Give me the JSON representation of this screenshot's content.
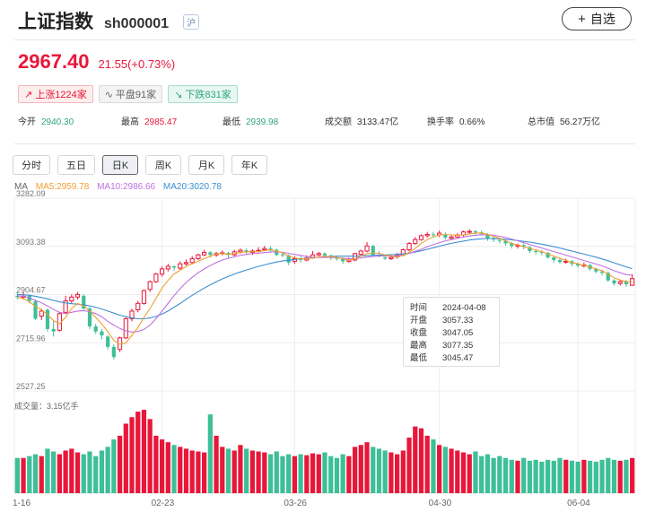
{
  "header": {
    "title": "上证指数",
    "code": "sh000001",
    "tag": "沪",
    "add_label": "自选",
    "add_icon": "plus-icon"
  },
  "quote": {
    "price": "2967.40",
    "change": "21.55(+0.73%)"
  },
  "market_breadth": {
    "up": "上涨1224家",
    "flat": "平盘91家",
    "down": "下跌831家"
  },
  "stats": [
    {
      "label": "今开",
      "value": "2940.30",
      "color": "green"
    },
    {
      "label": "最高",
      "value": "2985.47",
      "color": "red"
    },
    {
      "label": "最低",
      "value": "2939.98",
      "color": "green"
    },
    {
      "label": "成交额",
      "value": "3133.47亿",
      "color": "normal"
    },
    {
      "label": "换手率",
      "value": "0.66%",
      "color": "normal"
    },
    {
      "label": "总市值",
      "value": "56.27万亿",
      "color": "normal"
    }
  ],
  "tabs": [
    {
      "label": "分时",
      "active": false
    },
    {
      "label": "五日",
      "active": false
    },
    {
      "label": "日K",
      "active": true
    },
    {
      "label": "周K",
      "active": false
    },
    {
      "label": "月K",
      "active": false
    },
    {
      "label": "年K",
      "active": false
    }
  ],
  "ma_legend": {
    "label": "MA",
    "ma5": "MA5:2959.78",
    "ma10": "MA10:2986.66",
    "ma20": "MA20:3020.78"
  },
  "tooltip": {
    "rows": [
      {
        "k": "时间",
        "v": "2024-04-08"
      },
      {
        "k": "开盘",
        "v": "3057.33"
      },
      {
        "k": "收盘",
        "v": "3047.05"
      },
      {
        "k": "最高",
        "v": "3077.35"
      },
      {
        "k": "最低",
        "v": "3045.47"
      }
    ]
  },
  "volume_label": "成交量：3.15亿手",
  "colors": {
    "up": "#e8173a",
    "down": "#3dbf97",
    "ma5": "#f0a030",
    "ma10": "#c070e0",
    "ma20": "#3b8fd0"
  },
  "chart_data": {
    "type": "candlestick",
    "y_ticks": [
      "3282.09",
      "3093.38",
      "2904.67",
      "2715.96",
      "2527.25"
    ],
    "ylim": [
      2527.25,
      3282.09
    ],
    "x_ticks": [
      "1-16",
      "02-23",
      "03-26",
      "04-30",
      "06-04"
    ],
    "grid": true,
    "candles": [
      [
        2900,
        2895,
        2912,
        2885
      ],
      [
        2895,
        2898,
        2915,
        2885
      ],
      [
        2900,
        2880,
        2905,
        2870
      ],
      [
        2878,
        2810,
        2885,
        2805
      ],
      [
        2820,
        2840,
        2850,
        2805
      ],
      [
        2845,
        2770,
        2850,
        2760
      ],
      [
        2770,
        2760,
        2800,
        2740
      ],
      [
        2765,
        2830,
        2835,
        2760
      ],
      [
        2835,
        2880,
        2900,
        2830
      ],
      [
        2880,
        2895,
        2905,
        2870
      ],
      [
        2895,
        2905,
        2915,
        2885
      ],
      [
        2900,
        2850,
        2905,
        2845
      ],
      [
        2850,
        2780,
        2855,
        2770
      ],
      [
        2780,
        2760,
        2790,
        2750
      ],
      [
        2760,
        2745,
        2770,
        2730
      ],
      [
        2740,
        2700,
        2745,
        2690
      ],
      [
        2700,
        2660,
        2710,
        2650
      ],
      [
        2690,
        2735,
        2740,
        2680
      ],
      [
        2735,
        2810,
        2815,
        2730
      ],
      [
        2810,
        2840,
        2850,
        2800
      ],
      [
        2845,
        2870,
        2880,
        2835
      ],
      [
        2870,
        2920,
        2925,
        2865
      ],
      [
        2925,
        2955,
        2960,
        2915
      ],
      [
        2955,
        2985,
        2990,
        2950
      ],
      [
        2985,
        3005,
        3015,
        2975
      ],
      [
        3005,
        3015,
        3025,
        2995
      ],
      [
        3015,
        3010,
        3020,
        2998
      ],
      [
        3008,
        3025,
        3035,
        3000
      ],
      [
        3025,
        3030,
        3042,
        3018
      ],
      [
        3030,
        3045,
        3055,
        3025
      ],
      [
        3045,
        3060,
        3065,
        3040
      ],
      [
        3060,
        3070,
        3080,
        3055
      ],
      [
        3070,
        3060,
        3075,
        3050
      ],
      [
        3060,
        3065,
        3072,
        3052
      ],
      [
        3065,
        3068,
        3078,
        3058
      ],
      [
        3068,
        3060,
        3072,
        3048
      ],
      [
        3060,
        3072,
        3080,
        3055
      ],
      [
        3072,
        3078,
        3085,
        3065
      ],
      [
        3078,
        3070,
        3085,
        3062
      ],
      [
        3070,
        3075,
        3082,
        3060
      ],
      [
        3075,
        3078,
        3090,
        3070
      ],
      [
        3080,
        3085,
        3095,
        3075
      ],
      [
        3085,
        3080,
        3095,
        3070
      ],
      [
        3080,
        3060,
        3085,
        3055
      ],
      [
        3062,
        3058,
        3068,
        3050
      ],
      [
        3058,
        3030,
        3062,
        3020
      ],
      [
        3035,
        3045,
        3055,
        3025
      ],
      [
        3045,
        3040,
        3055,
        3030
      ],
      [
        3040,
        3048,
        3058,
        3035
      ],
      [
        3048,
        3060,
        3075,
        3045
      ],
      [
        3060,
        3065,
        3072,
        3055
      ],
      [
        3065,
        3058,
        3070,
        3050
      ],
      [
        3058,
        3050,
        3062,
        3040
      ],
      [
        3050,
        3045,
        3058,
        3038
      ],
      [
        3045,
        3035,
        3050,
        3025
      ],
      [
        3035,
        3040,
        3050,
        3030
      ],
      [
        3040,
        3065,
        3068,
        3035
      ],
      [
        3062,
        3075,
        3080,
        3055
      ],
      [
        3075,
        3095,
        3110,
        3070
      ],
      [
        3095,
        3060,
        3100,
        3055
      ],
      [
        3060,
        3055,
        3075,
        3050
      ],
      [
        3050,
        3045,
        3060,
        3040
      ],
      [
        3045,
        3050,
        3060,
        3040
      ],
      [
        3052,
        3060,
        3068,
        3045
      ],
      [
        3060,
        3080,
        3085,
        3055
      ],
      [
        3080,
        3105,
        3110,
        3075
      ],
      [
        3105,
        3120,
        3130,
        3100
      ],
      [
        3120,
        3135,
        3140,
        3115
      ],
      [
        3135,
        3140,
        3150,
        3128
      ],
      [
        3140,
        3138,
        3150,
        3130
      ],
      [
        3138,
        3145,
        3155,
        3130
      ],
      [
        3140,
        3128,
        3148,
        3120
      ],
      [
        3125,
        3130,
        3140,
        3118
      ],
      [
        3130,
        3138,
        3145,
        3125
      ],
      [
        3138,
        3150,
        3155,
        3132
      ],
      [
        3150,
        3152,
        3160,
        3142
      ],
      [
        3152,
        3148,
        3158,
        3140
      ],
      [
        3148,
        3142,
        3155,
        3135
      ],
      [
        3140,
        3125,
        3145,
        3115
      ],
      [
        3125,
        3120,
        3132,
        3110
      ],
      [
        3118,
        3115,
        3125,
        3105
      ],
      [
        3115,
        3105,
        3120,
        3095
      ],
      [
        3105,
        3095,
        3110,
        3085
      ],
      [
        3095,
        3098,
        3105,
        3085
      ],
      [
        3098,
        3092,
        3105,
        3082
      ],
      [
        3090,
        3075,
        3095,
        3068
      ],
      [
        3075,
        3072,
        3082,
        3062
      ],
      [
        3072,
        3068,
        3078,
        3058
      ],
      [
        3068,
        3050,
        3072,
        3045
      ],
      [
        3050,
        3040,
        3055,
        3030
      ],
      [
        3040,
        3032,
        3048,
        3025
      ],
      [
        3032,
        3035,
        3045,
        3025
      ],
      [
        3035,
        3025,
        3040,
        3015
      ],
      [
        3025,
        3018,
        3030,
        3010
      ],
      [
        3018,
        3020,
        3030,
        3010
      ],
      [
        3020,
        3005,
        3025,
        2998
      ],
      [
        3005,
        2995,
        3010,
        2988
      ],
      [
        2995,
        2990,
        3002,
        2980
      ],
      [
        2990,
        2960,
        2995,
        2955
      ],
      [
        2960,
        2948,
        2965,
        2940
      ],
      [
        2948,
        2955,
        2962,
        2940
      ],
      [
        2955,
        2945,
        2962,
        2935
      ],
      [
        2941,
        2967,
        2985,
        2940
      ]
    ],
    "ma5": [
      2893,
      2890,
      2876,
      2858,
      2846,
      2826,
      2803,
      2790,
      2816,
      2850,
      2870,
      2860,
      2840,
      2815,
      2790,
      2760,
      2725,
      2710,
      2715,
      2745,
      2775,
      2815,
      2850,
      2890,
      2930,
      2960,
      2985,
      3000,
      3015,
      3025,
      3035,
      3045,
      3055,
      3063,
      3065,
      3062,
      3065,
      3070,
      3072,
      3073,
      3073,
      3077,
      3080,
      3075,
      3068,
      3055,
      3048,
      3044,
      3045,
      3048,
      3052,
      3055,
      3053,
      3050,
      3045,
      3040,
      3045,
      3055,
      3065,
      3068,
      3066,
      3060,
      3055,
      3052,
      3058,
      3070,
      3085,
      3105,
      3120,
      3130,
      3138,
      3140,
      3138,
      3137,
      3138,
      3142,
      3145,
      3146,
      3140,
      3132,
      3125,
      3115,
      3105,
      3098,
      3092,
      3085,
      3080,
      3072,
      3064,
      3055,
      3046,
      3038,
      3030,
      3025,
      3018,
      3012,
      3005,
      2998,
      2985,
      2970,
      2962,
      2955,
      2955
    ],
    "ma10": [
      2900,
      2898,
      2892,
      2882,
      2872,
      2860,
      2846,
      2835,
      2830,
      2835,
      2840,
      2842,
      2838,
      2830,
      2818,
      2800,
      2785,
      2772,
      2762,
      2758,
      2760,
      2768,
      2785,
      2810,
      2840,
      2870,
      2900,
      2928,
      2952,
      2972,
      2990,
      3005,
      3018,
      3030,
      3040,
      3047,
      3052,
      3058,
      3062,
      3065,
      3067,
      3069,
      3071,
      3072,
      3070,
      3066,
      3062,
      3058,
      3054,
      3051,
      3050,
      3050,
      3050,
      3049,
      3047,
      3045,
      3046,
      3048,
      3051,
      3054,
      3056,
      3056,
      3055,
      3056,
      3060,
      3066,
      3074,
      3082,
      3092,
      3100,
      3108,
      3115,
      3120,
      3125,
      3130,
      3134,
      3137,
      3139,
      3139,
      3137,
      3133,
      3128,
      3122,
      3115,
      3108,
      3101,
      3094,
      3087,
      3080,
      3073,
      3066,
      3059,
      3052,
      3045,
      3038,
      3031,
      3024,
      3017,
      3008,
      2998,
      2990,
      2983,
      2980
    ],
    "ma20": [
      2905,
      2904,
      2902,
      2898,
      2893,
      2888,
      2882,
      2876,
      2872,
      2869,
      2867,
      2864,
      2860,
      2855,
      2848,
      2840,
      2832,
      2824,
      2818,
      2813,
      2810,
      2810,
      2813,
      2819,
      2828,
      2840,
      2855,
      2870,
      2886,
      2902,
      2916,
      2930,
      2943,
      2955,
      2966,
      2976,
      2985,
      2993,
      3001,
      3008,
      3015,
      3021,
      3027,
      3032,
      3036,
      3039,
      3042,
      3045,
      3047,
      3049,
      3051,
      3053,
      3054,
      3055,
      3055,
      3055,
      3055,
      3056,
      3057,
      3058,
      3059,
      3060,
      3061,
      3062,
      3064,
      3067,
      3071,
      3076,
      3082,
      3088,
      3094,
      3100,
      3105,
      3110,
      3114,
      3118,
      3121,
      3123,
      3124,
      3124,
      3123,
      3121,
      3119,
      3116,
      3113,
      3110,
      3106,
      3102,
      3097,
      3092,
      3087,
      3081,
      3075,
      3069,
      3063,
      3057,
      3051,
      3044,
      3037,
      3029,
      3021,
      3013,
      3006
    ],
    "volume": [
      0.38,
      0.38,
      0.4,
      0.42,
      0.4,
      0.48,
      0.45,
      0.42,
      0.46,
      0.48,
      0.44,
      0.42,
      0.45,
      0.4,
      0.46,
      0.5,
      0.58,
      0.62,
      0.75,
      0.82,
      0.88,
      0.9,
      0.8,
      0.62,
      0.58,
      0.55,
      0.52,
      0.5,
      0.48,
      0.46,
      0.45,
      0.44,
      0.85,
      0.62,
      0.5,
      0.48,
      0.46,
      0.52,
      0.48,
      0.46,
      0.45,
      0.44,
      0.42,
      0.45,
      0.4,
      0.42,
      0.4,
      0.42,
      0.41,
      0.43,
      0.42,
      0.44,
      0.4,
      0.38,
      0.42,
      0.4,
      0.5,
      0.52,
      0.55,
      0.5,
      0.48,
      0.46,
      0.44,
      0.42,
      0.46,
      0.6,
      0.72,
      0.7,
      0.62,
      0.58,
      0.52,
      0.5,
      0.48,
      0.46,
      0.44,
      0.42,
      0.45,
      0.4,
      0.42,
      0.38,
      0.4,
      0.38,
      0.36,
      0.35,
      0.38,
      0.35,
      0.36,
      0.34,
      0.36,
      0.35,
      0.38,
      0.36,
      0.35,
      0.34,
      0.36,
      0.35,
      0.34,
      0.36,
      0.38,
      0.36,
      0.35,
      0.36,
      0.38
    ],
    "volume_ylim": [
      0,
      0.9
    ]
  }
}
